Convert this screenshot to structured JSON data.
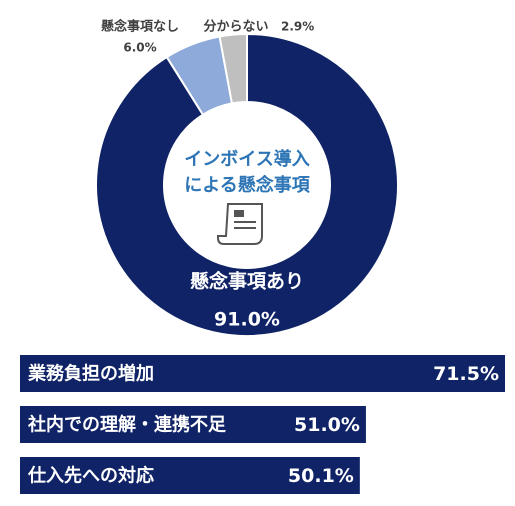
{
  "chart_data": [
    {
      "type": "donut",
      "title_lines": [
        "インボイス導入",
        "による懸念事項"
      ],
      "categories": [
        "懸念事項あり",
        "懸念事項なし",
        "分からない"
      ],
      "values": [
        91.0,
        6.0,
        2.9
      ],
      "value_labels": [
        "91.0%",
        "6.0%",
        "2.9%"
      ],
      "colors": [
        "#0f2366",
        "#8eaadb",
        "#bfbfbf"
      ]
    },
    {
      "type": "hbar",
      "categories": [
        "業務負担の増加",
        "社内での理解・連携不足",
        "仕入先への対応"
      ],
      "values": [
        71.5,
        51.0,
        50.1
      ],
      "value_labels": [
        "71.5%",
        "51.0%",
        "50.1%"
      ],
      "color": "#0f2366"
    }
  ]
}
